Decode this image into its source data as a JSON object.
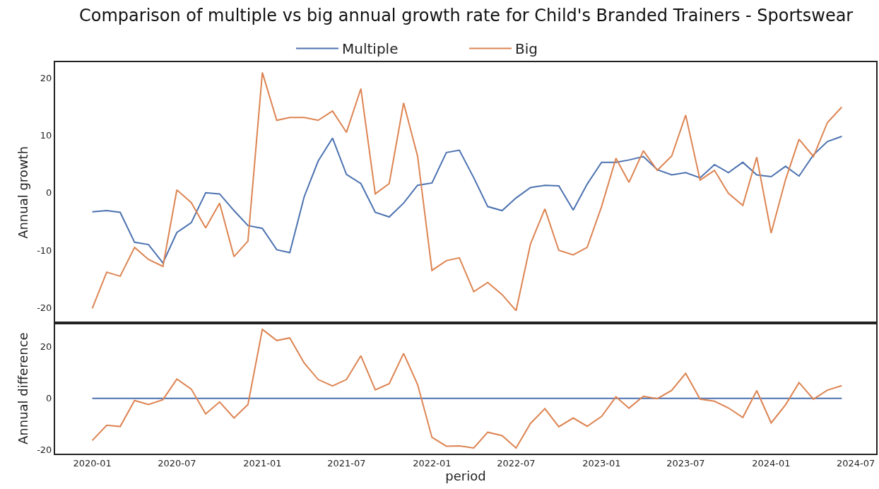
{
  "chart_data": [
    {
      "type": "line",
      "title": "Comparison of multiple vs big annual growth rate for Child's Branded Trainers - Sportswear",
      "ylabel": "Annual growth",
      "legend": "top",
      "grid": false,
      "tick_labels": "y",
      "x": [
        "2020-01",
        "2020-02",
        "2020-03",
        "2020-04",
        "2020-05",
        "2020-06",
        "2020-07",
        "2020-08",
        "2020-09",
        "2020-10",
        "2020-11",
        "2020-12",
        "2021-01",
        "2021-02",
        "2021-03",
        "2021-04",
        "2021-05",
        "2021-06",
        "2021-07",
        "2021-08",
        "2021-09",
        "2021-10",
        "2021-11",
        "2021-12",
        "2022-01",
        "2022-02",
        "2022-03",
        "2022-04",
        "2022-05",
        "2022-06",
        "2022-07",
        "2022-08",
        "2022-09",
        "2022-10",
        "2022-11",
        "2022-12",
        "2023-01",
        "2023-02",
        "2023-03",
        "2023-04",
        "2023-05",
        "2023-06",
        "2023-07",
        "2023-08",
        "2023-09",
        "2023-10",
        "2023-11",
        "2023-12",
        "2024-01",
        "2024-02",
        "2024-03",
        "2024-04",
        "2024-05",
        "2024-06"
      ],
      "xlim": [
        "2019-10-13",
        "2024-08-14"
      ],
      "ylim": [
        -22.6,
        22.7
      ],
      "yticks": [
        -20,
        -10,
        0,
        10,
        20
      ],
      "series": [
        {
          "name": "Multiple",
          "color": "#4c72b0",
          "values": [
            -3.3,
            -3.1,
            -3.4,
            -8.6,
            -9.0,
            -12.2,
            -6.9,
            -5.2,
            0.0,
            -0.2,
            -3.1,
            -5.7,
            -6.2,
            -9.9,
            -10.4,
            -0.7,
            5.5,
            9.5,
            3.2,
            1.6,
            -3.4,
            -4.2,
            -1.8,
            1.3,
            1.7,
            7.0,
            7.4,
            2.6,
            -2.4,
            -3.1,
            -0.9,
            0.9,
            1.3,
            1.2,
            -3.0,
            1.5,
            5.3,
            5.3,
            5.7,
            6.3,
            4.0,
            3.1,
            3.5,
            2.6,
            4.9,
            3.5,
            5.3,
            3.1,
            2.8,
            4.6,
            2.9,
            6.6,
            8.9,
            9.8
          ]
        },
        {
          "name": "Big",
          "color": "#dd8452",
          "values": [
            -20.1,
            -13.8,
            -14.5,
            -9.5,
            -11.6,
            -12.8,
            0.5,
            -1.7,
            -6.1,
            -1.8,
            -11.1,
            -8.4,
            20.9,
            12.6,
            13.1,
            13.1,
            12.6,
            14.2,
            10.5,
            18.1,
            -0.2,
            1.6,
            15.6,
            6.4,
            -13.5,
            -11.8,
            -11.3,
            -17.2,
            -15.6,
            -17.7,
            -20.5,
            -8.9,
            -2.8,
            -10.0,
            -10.8,
            -9.5,
            -2.4,
            6.0,
            1.8,
            7.3,
            3.9,
            6.4,
            13.5,
            2.2,
            3.9,
            -0.1,
            -2.2,
            6.2,
            -7.0,
            2.3,
            9.3,
            6.3,
            12.2,
            14.9
          ]
        }
      ]
    },
    {
      "type": "line",
      "xlabel": "period",
      "ylabel": "Annual difference",
      "grid": false,
      "x": [
        "2020-01",
        "2020-02",
        "2020-03",
        "2020-04",
        "2020-05",
        "2020-06",
        "2020-07",
        "2020-08",
        "2020-09",
        "2020-10",
        "2020-11",
        "2020-12",
        "2021-01",
        "2021-02",
        "2021-03",
        "2021-04",
        "2021-05",
        "2021-06",
        "2021-07",
        "2021-08",
        "2021-09",
        "2021-10",
        "2021-11",
        "2021-12",
        "2022-01",
        "2022-02",
        "2022-03",
        "2022-04",
        "2022-05",
        "2022-06",
        "2022-07",
        "2022-08",
        "2022-09",
        "2022-10",
        "2022-11",
        "2022-12",
        "2023-01",
        "2023-02",
        "2023-03",
        "2023-04",
        "2023-05",
        "2023-06",
        "2023-07",
        "2023-08",
        "2023-09",
        "2023-10",
        "2023-11",
        "2023-12",
        "2024-01",
        "2024-02",
        "2024-03",
        "2024-04",
        "2024-05",
        "2024-06"
      ],
      "xlim": [
        "2019-10-13",
        "2024-08-14"
      ],
      "xticks": [
        {
          "value": "2020-01",
          "label": "2020-01"
        },
        {
          "value": "2020-07",
          "label": "2020-07"
        },
        {
          "value": "2021-01",
          "label": "2021-01"
        },
        {
          "value": "2021-07",
          "label": "2021-07"
        },
        {
          "value": "2022-01",
          "label": "2022-01"
        },
        {
          "value": "2022-07",
          "label": "2022-07"
        },
        {
          "value": "2023-01",
          "label": "2023-01"
        },
        {
          "value": "2023-07",
          "label": "2023-07"
        },
        {
          "value": "2024-01",
          "label": "2024-01"
        },
        {
          "value": "2024-07",
          "label": "2024-07"
        }
      ],
      "ylim": [
        -21.4,
        29.1
      ],
      "yticks": [
        -20,
        0,
        20
      ],
      "series": [
        {
          "color": "#4c72b0",
          "values": [
            0,
            0,
            0,
            0,
            0,
            0,
            0,
            0,
            0,
            0,
            0,
            0,
            0,
            0,
            0,
            0,
            0,
            0,
            0,
            0,
            0,
            0,
            0,
            0,
            0,
            0,
            0,
            0,
            0,
            0,
            0,
            0,
            0,
            0,
            0,
            0,
            0,
            0,
            0,
            0,
            0,
            0,
            0,
            0,
            0,
            0,
            0,
            0,
            0,
            0,
            0,
            0,
            0,
            0
          ]
        },
        {
          "color": "#dd8452",
          "values": [
            -16.3,
            -10.4,
            -10.9,
            -0.8,
            -2.4,
            -0.5,
            7.5,
            3.6,
            -6.0,
            -1.4,
            -7.6,
            -2.4,
            26.7,
            22.4,
            23.4,
            13.7,
            7.3,
            4.8,
            7.3,
            16.5,
            3.3,
            5.7,
            17.4,
            5.4,
            -15.1,
            -18.5,
            -18.4,
            -19.2,
            -13.1,
            -14.4,
            -19.2,
            -9.7,
            -4.0,
            -11.0,
            -7.6,
            -10.8,
            -7.0,
            0.6,
            -3.8,
            0.8,
            -0.1,
            3.1,
            9.7,
            -0.3,
            -1.1,
            -3.7,
            -7.4,
            3.0,
            -9.5,
            -2.5,
            6.1,
            -0.3,
            3.2,
            4.9
          ]
        }
      ]
    }
  ]
}
